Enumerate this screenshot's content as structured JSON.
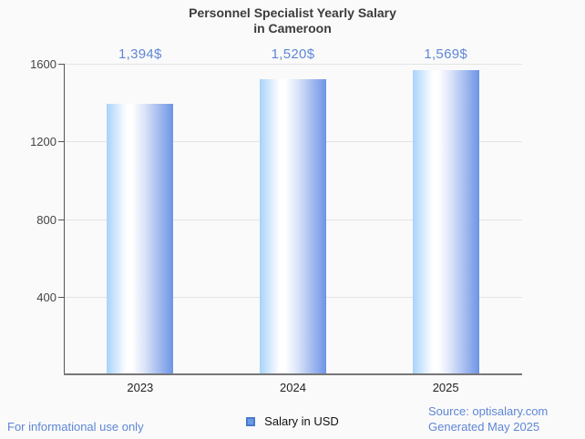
{
  "title": {
    "line1": "Personnel Specialist Yearly Salary",
    "line2": "in Cameroon"
  },
  "chart_data": {
    "type": "bar",
    "title": "Personnel Specialist Yearly Salary in Cameroon",
    "categories": [
      "2023",
      "2024",
      "2025"
    ],
    "values": [
      1394,
      1520,
      1569
    ],
    "value_labels": [
      "1,394$",
      "1,520$",
      "1,569$"
    ],
    "series_name": "Salary in USD",
    "xlabel": "",
    "ylabel": "",
    "ylim": [
      0,
      1600
    ],
    "yticks": [
      400,
      800,
      1200,
      1600
    ],
    "grid": true,
    "legend_position": "bottom"
  },
  "legend": {
    "label": "Salary in USD"
  },
  "footer": {
    "left": "For informational use only",
    "source_line1": "Source: optisalary.com",
    "source_line2": "Generated May 2025"
  },
  "colors": {
    "background": "#fafafa",
    "title_text": "#3c3c3c",
    "accent_blue": "#5e87d6",
    "bar_gradient_left": "#a8d3fa",
    "bar_gradient_white": "#ffffff",
    "bar_gradient_mid": "#d9e2f8",
    "bar_gradient_right": "#6d94e6",
    "legend_fill": "#6a9be8",
    "legend_border": "#4a7ac9",
    "gridline": "#e3e3e3",
    "axis_line": "#555555",
    "tick_text": "#444444"
  }
}
